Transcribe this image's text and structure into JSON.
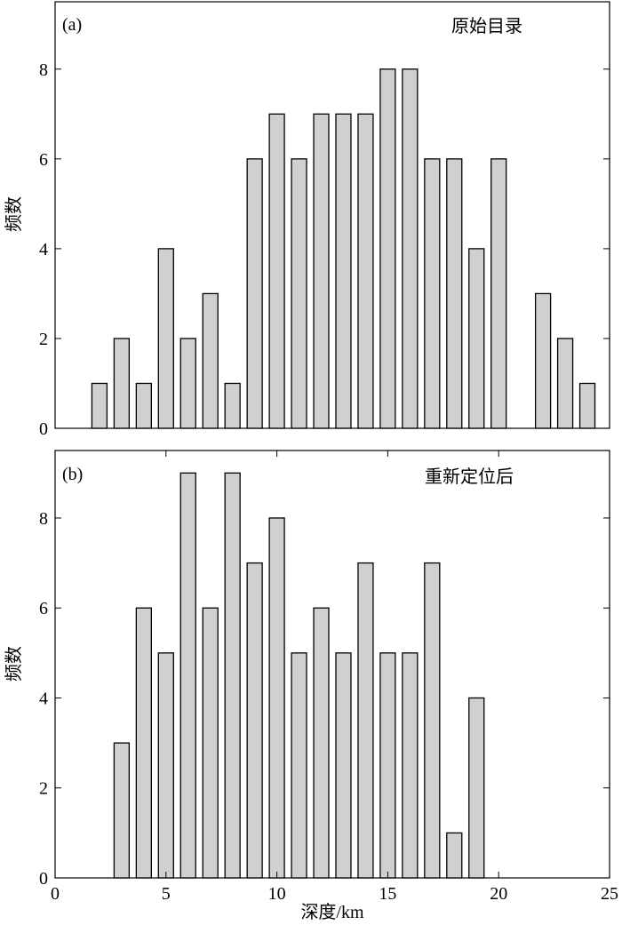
{
  "chart_data": [
    {
      "type": "bar",
      "panel_label": "(a)",
      "title": "原始目录",
      "ylabel": "频数",
      "xlabel": "",
      "xlim": [
        0,
        25
      ],
      "ylim": [
        0,
        9.5
      ],
      "yticks": [
        0,
        2,
        4,
        6,
        8
      ],
      "xticks": [],
      "bar_color": "#d0d0d0",
      "x": [
        2,
        3,
        4,
        5,
        6,
        7,
        8,
        9,
        10,
        11,
        12,
        13,
        14,
        15,
        16,
        17,
        18,
        19,
        20,
        22,
        23,
        24
      ],
      "values": [
        1,
        2,
        1,
        4,
        2,
        3,
        1,
        6,
        7,
        6,
        7,
        7,
        7,
        8,
        8,
        6,
        6,
        4,
        6,
        3,
        2,
        1
      ]
    },
    {
      "type": "bar",
      "panel_label": "(b)",
      "title": "重新定位后",
      "ylabel": "频数",
      "xlabel": "深度/km",
      "xlim": [
        0,
        25
      ],
      "ylim": [
        0,
        9.5
      ],
      "yticks": [
        0,
        2,
        4,
        6,
        8
      ],
      "xticks": [
        0,
        5,
        10,
        15,
        20,
        25
      ],
      "bar_color": "#d0d0d0",
      "x": [
        3,
        4,
        5,
        6,
        7,
        8,
        9,
        10,
        11,
        12,
        13,
        14,
        15,
        16,
        17,
        18,
        19
      ],
      "values": [
        3,
        6,
        5,
        9,
        6,
        9,
        7,
        8,
        5,
        6,
        5,
        7,
        5,
        5,
        7,
        1,
        4
      ]
    }
  ]
}
